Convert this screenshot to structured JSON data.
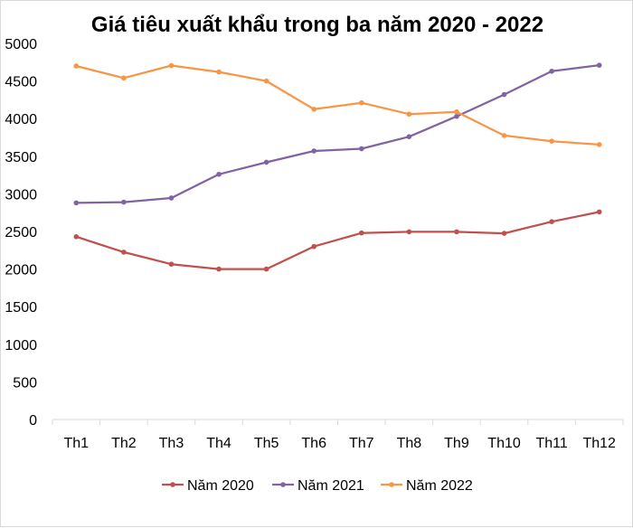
{
  "chart_data": {
    "type": "line",
    "title": "Giá tiêu xuất khẩu trong ba năm 2020 - 2022",
    "xlabel": "",
    "ylabel": "",
    "categories": [
      "Th1",
      "Th2",
      "Th3",
      "Th4",
      "Th5",
      "Th6",
      "Th7",
      "Th8",
      "Th9",
      "Th10",
      "Th11",
      "Th12"
    ],
    "ylim": [
      0,
      5000
    ],
    "yticks": [
      "0",
      "500",
      "1000",
      "1500",
      "2000",
      "2500",
      "3000",
      "3500",
      "4000",
      "4500",
      "5000"
    ],
    "grid": false,
    "legend_position": "bottom",
    "series": [
      {
        "name": "Năm 2020",
        "color": "#c0504d",
        "values": [
          2430,
          2225,
          2065,
          2000,
          2000,
          2300,
          2480,
          2495,
          2495,
          2475,
          2630,
          2760
        ]
      },
      {
        "name": "Năm 2021",
        "color": "#8064a2",
        "values": [
          2880,
          2890,
          2945,
          3260,
          3420,
          3570,
          3600,
          3760,
          4030,
          4320,
          4630,
          4710
        ]
      },
      {
        "name": "Năm 2022",
        "color": "#f79646",
        "values": [
          4700,
          4540,
          4705,
          4620,
          4500,
          4125,
          4210,
          4060,
          4090,
          3775,
          3700,
          3655
        ]
      }
    ]
  }
}
